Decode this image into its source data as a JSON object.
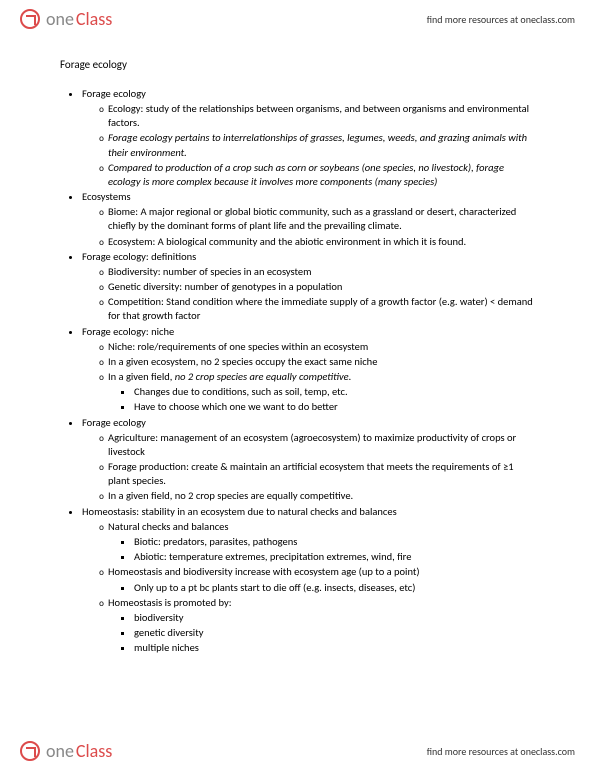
{
  "brand": {
    "one": "one",
    "class": "Class",
    "tagline": "find more resources at oneclass.com"
  },
  "title": "Forage ecology",
  "sections": [
    {
      "heading": "Forage ecology",
      "items": [
        {
          "text": "Ecology: study of the relationships between organisms, and between organisms and environmental factors.",
          "italic": false
        },
        {
          "text": "Forage ecology pertains to interrelationships of grasses, legumes, weeds, and grazing animals with their environment.",
          "italic": true
        },
        {
          "text": "Compared to production of a crop such as corn or soybeans (one species, no livestock), forage ecology is more complex because it involves more components (many species)",
          "italic": true
        }
      ]
    },
    {
      "heading": "Ecosystems",
      "items": [
        {
          "text": "Biome: A major regional or global biotic community, such as a grassland or desert, characterized chiefly by the dominant forms of plant life and the prevailing climate.",
          "italic": false
        },
        {
          "text": "Ecosystem: A biological community and the abiotic environment in which it is found.",
          "italic": false
        }
      ]
    },
    {
      "heading": "Forage ecology: definitions",
      "items": [
        {
          "text": "Biodiversity: number of species in an ecosystem",
          "italic": false
        },
        {
          "text": "Genetic diversity: number of genotypes in a population",
          "italic": false
        },
        {
          "text": "Competition: Stand condition where the immediate supply of a growth factor (e.g. water) < demand for that growth factor",
          "italic": false
        }
      ]
    },
    {
      "heading": "Forage ecology: niche",
      "items": [
        {
          "text": "Niche: role/requirements of one species within an ecosystem",
          "italic": false
        },
        {
          "text": "In a given ecosystem, no 2 species occupy the exact same niche",
          "italic": false
        },
        {
          "text": "In a given field, ",
          "italic": false,
          "tail": "no 2 crop species are equally competitive.",
          "tailItalic": true,
          "sub": [
            {
              "text": "Changes due to conditions, such as soil, temp, etc."
            },
            {
              "text": "Have to choose which one we want to do better"
            }
          ]
        }
      ]
    },
    {
      "heading": "Forage ecology",
      "items": [
        {
          "text": "Agriculture: management of an ecosystem (agroecosystem) to maximize productivity of crops or livestock",
          "italic": false
        },
        {
          "text": "Forage production: create & maintain an artificial ecosystem that meets the requirements of ≥1 plant species.",
          "italic": false
        },
        {
          "text": "In a given field, no 2 crop species are equally competitive.",
          "italic": false
        }
      ]
    },
    {
      "heading": "Homeostasis: stability in an ecosystem due to natural checks and balances",
      "items": [
        {
          "text": "Natural checks and balances",
          "italic": false,
          "sub": [
            {
              "text": "Biotic: predators, parasites, pathogens"
            },
            {
              "text": "Abiotic: temperature extremes, precipitation extremes, wind, fire"
            }
          ]
        },
        {
          "text": "Homeostasis and biodiversity increase with ecosystem age (up to a point)",
          "italic": false,
          "sub": [
            {
              "text": "Only up to a pt bc plants start to die off (e.g. insects, diseases, etc)"
            }
          ]
        },
        {
          "text": "Homeostasis is promoted by:",
          "italic": false,
          "sub": [
            {
              "text": "biodiversity"
            },
            {
              "text": "genetic diversity"
            },
            {
              "text": "multiple niches"
            }
          ]
        }
      ]
    }
  ]
}
